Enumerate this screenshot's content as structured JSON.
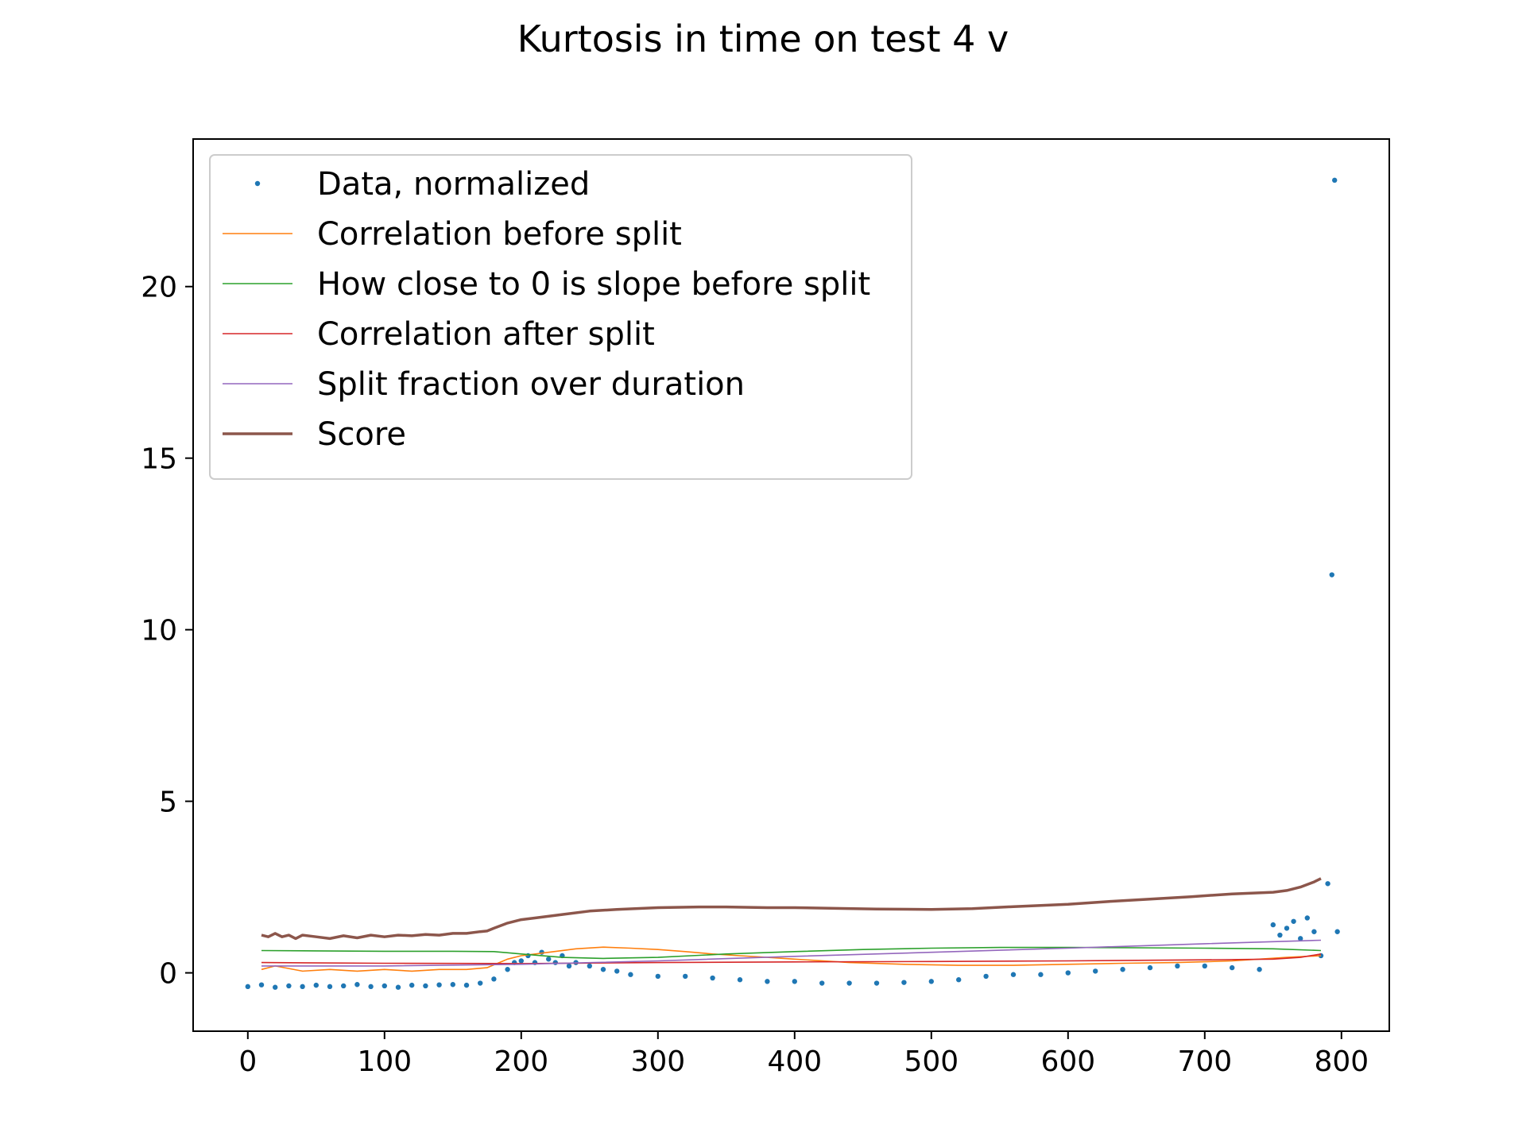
{
  "chart_data": {
    "type": "line",
    "title": "Kurtosis in time on test 4 v",
    "xlabel": "",
    "ylabel": "",
    "xlim": [
      -40,
      835
    ],
    "ylim": [
      -1.7,
      24.3
    ],
    "xticks": [
      0,
      100,
      200,
      300,
      400,
      500,
      600,
      700,
      800
    ],
    "yticks": [
      0,
      5,
      10,
      15,
      20
    ],
    "grid": false,
    "legend_position": "top-left",
    "series": [
      {
        "name": "Data, normalized",
        "kind": "scatter",
        "color": "#1f77b4",
        "x": [
          0,
          10,
          20,
          30,
          40,
          50,
          60,
          70,
          80,
          90,
          100,
          110,
          120,
          130,
          140,
          150,
          160,
          170,
          180,
          190,
          195,
          200,
          205,
          210,
          215,
          220,
          225,
          230,
          235,
          240,
          250,
          260,
          270,
          280,
          300,
          320,
          340,
          360,
          380,
          400,
          420,
          440,
          460,
          480,
          500,
          520,
          540,
          560,
          580,
          600,
          620,
          640,
          660,
          680,
          700,
          720,
          740,
          750,
          755,
          760,
          765,
          770,
          775,
          780,
          785,
          790,
          793,
          795,
          797
        ],
        "y": [
          -0.4,
          -0.35,
          -0.42,
          -0.38,
          -0.4,
          -0.36,
          -0.4,
          -0.38,
          -0.34,
          -0.4,
          -0.38,
          -0.42,
          -0.36,
          -0.38,
          -0.35,
          -0.34,
          -0.36,
          -0.3,
          -0.18,
          0.1,
          0.3,
          0.35,
          0.5,
          0.3,
          0.6,
          0.4,
          0.3,
          0.5,
          0.2,
          0.3,
          0.2,
          0.1,
          0.05,
          -0.05,
          -0.1,
          -0.1,
          -0.15,
          -0.2,
          -0.25,
          -0.25,
          -0.3,
          -0.3,
          -0.3,
          -0.28,
          -0.25,
          -0.2,
          -0.1,
          -0.05,
          -0.05,
          0.0,
          0.05,
          0.1,
          0.15,
          0.2,
          0.2,
          0.15,
          0.1,
          1.4,
          1.1,
          1.3,
          1.5,
          1.0,
          1.6,
          1.2,
          0.5,
          2.6,
          11.6,
          23.1,
          1.2
        ]
      },
      {
        "name": "Correlation before split",
        "kind": "line",
        "color": "#ff7f0e",
        "x": [
          10,
          20,
          40,
          60,
          80,
          100,
          120,
          140,
          160,
          175,
          190,
          200,
          220,
          240,
          260,
          280,
          300,
          320,
          340,
          360,
          380,
          400,
          440,
          480,
          520,
          560,
          600,
          640,
          680,
          720,
          760,
          785
        ],
        "y": [
          0.1,
          0.2,
          0.05,
          0.1,
          0.05,
          0.1,
          0.05,
          0.1,
          0.1,
          0.15,
          0.4,
          0.5,
          0.6,
          0.7,
          0.75,
          0.72,
          0.68,
          0.62,
          0.55,
          0.5,
          0.45,
          0.4,
          0.3,
          0.25,
          0.22,
          0.22,
          0.25,
          0.28,
          0.3,
          0.35,
          0.45,
          0.5
        ]
      },
      {
        "name": "How close to 0 is slope before split",
        "kind": "line",
        "color": "#2ca02c",
        "x": [
          10,
          50,
          100,
          150,
          180,
          200,
          230,
          260,
          300,
          350,
          400,
          450,
          500,
          550,
          600,
          650,
          700,
          750,
          785
        ],
        "y": [
          0.65,
          0.64,
          0.63,
          0.63,
          0.62,
          0.55,
          0.45,
          0.42,
          0.45,
          0.55,
          0.62,
          0.68,
          0.72,
          0.74,
          0.74,
          0.73,
          0.72,
          0.7,
          0.65
        ]
      },
      {
        "name": "Correlation after split",
        "kind": "line",
        "color": "#d62728",
        "x": [
          10,
          100,
          200,
          300,
          400,
          500,
          600,
          700,
          750,
          770,
          785
        ],
        "y": [
          0.3,
          0.28,
          0.27,
          0.3,
          0.32,
          0.33,
          0.35,
          0.38,
          0.4,
          0.45,
          0.55
        ]
      },
      {
        "name": "Split fraction over duration",
        "kind": "line",
        "color": "#9467bd",
        "x": [
          10,
          100,
          200,
          300,
          400,
          500,
          600,
          700,
          785
        ],
        "y": [
          0.2,
          0.2,
          0.25,
          0.35,
          0.48,
          0.6,
          0.72,
          0.85,
          0.95
        ]
      },
      {
        "name": "Score",
        "kind": "line",
        "color": "#8c564b",
        "x": [
          10,
          15,
          20,
          25,
          30,
          35,
          40,
          50,
          60,
          70,
          80,
          90,
          100,
          110,
          120,
          130,
          140,
          150,
          160,
          170,
          175,
          180,
          190,
          200,
          210,
          230,
          250,
          270,
          300,
          330,
          350,
          380,
          400,
          430,
          460,
          500,
          530,
          560,
          600,
          630,
          660,
          690,
          720,
          750,
          760,
          770,
          780,
          785
        ],
        "y": [
          1.1,
          1.05,
          1.15,
          1.05,
          1.1,
          1.0,
          1.1,
          1.05,
          1.0,
          1.08,
          1.02,
          1.1,
          1.05,
          1.1,
          1.08,
          1.12,
          1.1,
          1.15,
          1.15,
          1.2,
          1.22,
          1.3,
          1.45,
          1.55,
          1.6,
          1.7,
          1.8,
          1.85,
          1.9,
          1.92,
          1.92,
          1.9,
          1.9,
          1.88,
          1.86,
          1.85,
          1.87,
          1.93,
          2.0,
          2.08,
          2.15,
          2.22,
          2.3,
          2.35,
          2.4,
          2.5,
          2.65,
          2.75
        ]
      }
    ]
  }
}
